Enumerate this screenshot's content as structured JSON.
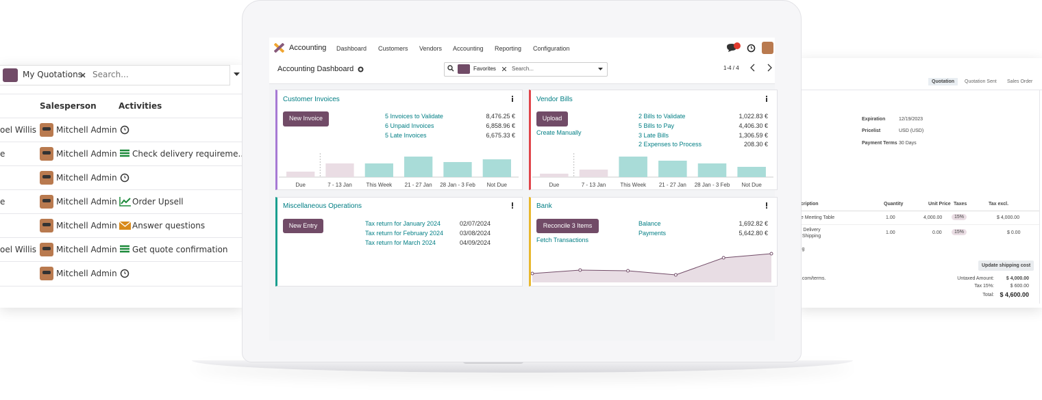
{
  "quotations_list": {
    "filter_facet": "My Quotations",
    "search_placeholder": "Search...",
    "columns": {
      "salesperson": "Salesperson",
      "activities": "Activities"
    },
    "rows": [
      {
        "customer": "oel Willis",
        "salesperson": "Mitchell Admin"
      },
      {
        "customer": "e",
        "salesperson": "Mitchell Admin",
        "activity": "Check delivery requireme..."
      },
      {
        "salesperson": "Mitchell Admin"
      },
      {
        "customer": "e",
        "salesperson": "Mitchell Admin",
        "activity": "Order Upsell"
      },
      {
        "salesperson": "Mitchell Admin",
        "activity": "Answer questions"
      },
      {
        "customer": "oel Willis",
        "salesperson": "Mitchell Admin",
        "activity": "Get quote confirmation"
      },
      {
        "salesperson": "Mitchell Admin"
      }
    ]
  },
  "accounting": {
    "app_name": "Accounting",
    "menu": [
      "Dashboard",
      "Customers",
      "Vendors",
      "Accounting",
      "Reporting",
      "Configuration"
    ],
    "breadcrumb": "Accounting Dashboard",
    "search_facet": "Favorites",
    "search_placeholder": "Search...",
    "pager": "1-4 / 4",
    "cards": {
      "customer_invoices": {
        "title": "Customer Invoices",
        "button": "New Invoice",
        "stats": [
          {
            "label": "5 Invoices to Validate",
            "amount": "8,476.25 €"
          },
          {
            "label": "6 Unpaid Invoices",
            "amount": "6,858.96 €"
          },
          {
            "label": "5 Late Invoices",
            "amount": "6,675.33 €"
          }
        ],
        "graph": {
          "labels": [
            "Due",
            "7 - 13 Jan",
            "This Week",
            "21 - 27 Jan",
            "28 Jan - 3 Feb",
            "Not Due"
          ],
          "values": [
            8,
            20,
            20,
            30,
            22,
            26
          ],
          "ylim": [
            0,
            30
          ],
          "colors": [
            "#eadde4",
            "#eadde4",
            "#a9dcd8",
            "#a9dcd8",
            "#a9dcd8",
            "#a9dcd8"
          ]
        }
      },
      "vendor_bills": {
        "title": "Vendor Bills",
        "button": "Upload",
        "link": "Create Manually",
        "stats": [
          {
            "label": "2 Bills to Validate",
            "amount": "1,022.83 €"
          },
          {
            "label": "5 Bills to Pay",
            "amount": "4,406.30 €"
          },
          {
            "label": "3 Late Bills",
            "amount": "1,306.59 €"
          },
          {
            "label": "2 Expenses to Process",
            "amount": "208.30 €"
          }
        ],
        "graph": {
          "labels": [
            "Due",
            "7 - 13 Jan",
            "This Week",
            "21 - 27 Jan",
            "28 Jan - 3 Feb",
            "Not Due"
          ],
          "values": [
            5,
            11,
            30,
            24,
            20,
            15
          ],
          "ylim": [
            0,
            30
          ],
          "colors": [
            "#eadde4",
            "#eadde4",
            "#a9dcd8",
            "#a9dcd8",
            "#a9dcd8",
            "#a9dcd8"
          ]
        }
      },
      "miscellaneous_operations": {
        "title": "Miscellaneous Operations",
        "button": "New Entry",
        "items": [
          {
            "label": "Tax return for January 2024",
            "date": "02/07/2024"
          },
          {
            "label": "Tax return for February 2024",
            "date": "03/08/2024"
          },
          {
            "label": "Tax return for March 2024",
            "date": "04/09/2024"
          }
        ]
      },
      "bank": {
        "title": "Bank",
        "button": "Reconcile 3 Items",
        "link": "Fetch Transactions",
        "stats": [
          {
            "label": "Balance",
            "amount": "1,692.82 €"
          },
          {
            "label": "Payments",
            "amount": "5,642.80 €"
          }
        ],
        "graph": {
          "values": [
            13,
            18,
            17,
            11,
            36,
            42
          ],
          "ylim": [
            0,
            50
          ],
          "color": "#714b67",
          "fill": "#e8dde4"
        }
      }
    }
  },
  "sales_order": {
    "steps": [
      "Quotation",
      "Quotation Sent",
      "Sales Order"
    ],
    "fields": [
      {
        "label": "Expiration",
        "value": "12/19/2023"
      },
      {
        "label": "Pricelist",
        "value": "USD (USD)"
      },
      {
        "label": "Payment Terms",
        "value": "30 Days"
      }
    ],
    "columns": [
      "scription",
      "Quantity",
      "Unit Price",
      "Taxes",
      "Tax excl."
    ],
    "lines": [
      {
        "product": "ge Meeting Table",
        "quantity": "1.00",
        "unit_price": "4,000.00",
        "tax": "15%",
        "subtotal": "$ 4,000.00"
      },
      {
        "product": "al Delivery",
        "product_detail": "e Shipping",
        "quantity": "1.00",
        "unit_price": "0.00",
        "tax": "15%",
        "subtotal": "$ 0.00"
      }
    ],
    "catalog_link": "log",
    "update_button": "Update shipping cost",
    "terms": "d.com/terms.",
    "totals": [
      {
        "label": "Untaxed Amount:",
        "value": "$ 4,000.00"
      },
      {
        "label": "Tax 15%:",
        "value": "$ 600.00"
      },
      {
        "label": "Total:",
        "value": "$ 4,600.00"
      }
    ]
  }
}
